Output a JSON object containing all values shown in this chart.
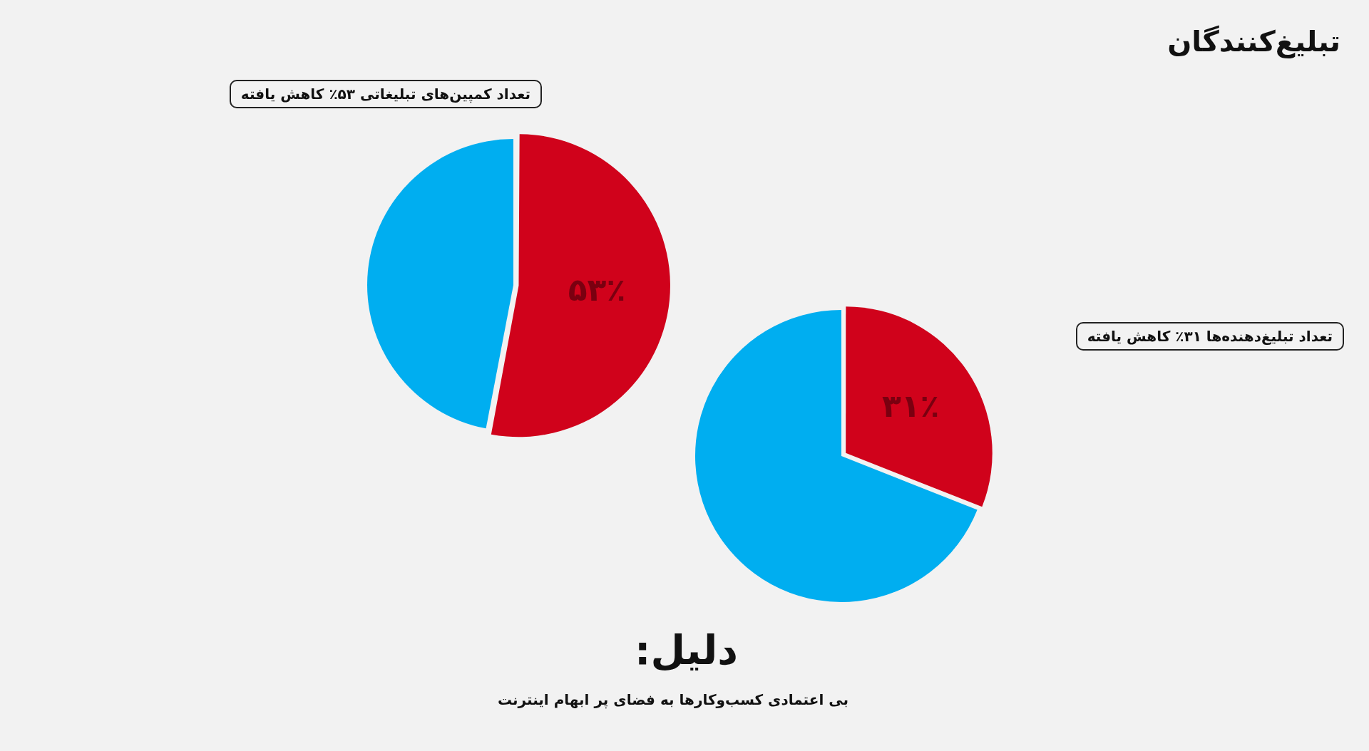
{
  "chart_data": [
    {
      "type": "pie",
      "categories": [
        null,
        null
      ],
      "values": [
        53,
        47
      ],
      "colors": [
        "#d0021b",
        "#00aef0"
      ],
      "value_labels": [
        "۵۳٪",
        null
      ],
      "legend": false,
      "annotations": [
        "تعداد کمپین‌های تبلیغاتی ۵۳٪ کاهش یافته"
      ]
    },
    {
      "type": "pie",
      "title": "تبلیغ‌کنندگان",
      "categories": [
        null,
        null
      ],
      "values": [
        31,
        69
      ],
      "colors": [
        "#d0021b",
        "#00aef0"
      ],
      "value_labels": [
        "۳۱٪",
        null
      ],
      "legend": false,
      "annotations": [
        "تعداد تبلیغ‌دهنده‌ها ۳۱٪ کاهش یافته",
        "دلیل:",
        "بی اعتمادی کسب‌وکارها به فضای پر ابهام اینترنت"
      ]
    }
  ]
}
